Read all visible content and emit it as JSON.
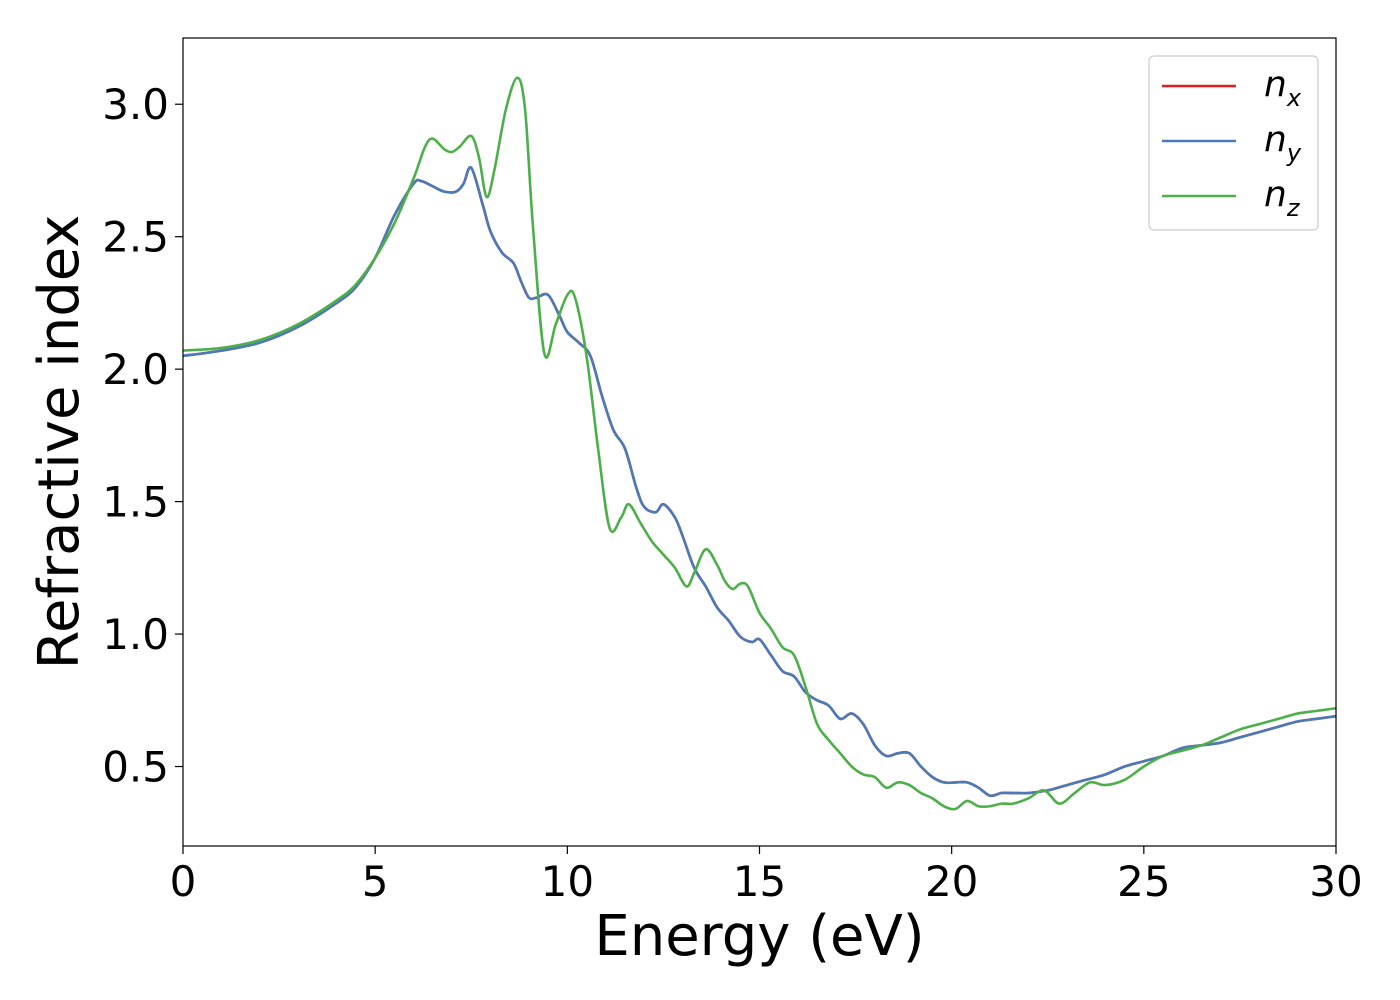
{
  "chart_data": {
    "type": "line",
    "title": "",
    "xlabel": "Energy (eV)",
    "ylabel": "Refractive index",
    "xlim": [
      0,
      30
    ],
    "ylim": [
      0.2,
      3.25
    ],
    "xticks": [
      0,
      5,
      10,
      15,
      20,
      25,
      30
    ],
    "yticks": [
      0.5,
      1.0,
      1.5,
      2.0,
      2.5,
      3.0
    ],
    "xtick_labels": [
      "0",
      "5",
      "10",
      "15",
      "20",
      "25",
      "30"
    ],
    "ytick_labels": [
      "0.5",
      "1.0",
      "1.5",
      "2.0",
      "2.5",
      "3.0"
    ],
    "grid": false,
    "legend_position": "top-right",
    "series": [
      {
        "name": "n",
        "sub": "x",
        "color": "#e41a1c",
        "x": [
          0,
          1,
          2,
          3,
          4,
          4.5,
          5,
          5.5,
          6,
          6.2,
          6.5,
          6.8,
          7.1,
          7.3,
          7.5,
          7.8,
          8.0,
          8.3,
          8.6,
          8.8,
          9.0,
          9.2,
          9.5,
          9.8,
          10.0,
          10.3,
          10.6,
          10.9,
          11.2,
          11.5,
          11.8,
          12.0,
          12.3,
          12.5,
          12.8,
          13.0,
          13.3,
          13.6,
          13.9,
          14.2,
          14.5,
          14.8,
          15.0,
          15.3,
          15.6,
          15.9,
          16.2,
          16.5,
          16.8,
          17.1,
          17.4,
          17.7,
          18.0,
          18.3,
          18.6,
          18.9,
          19.2,
          19.5,
          19.8,
          20.1,
          20.4,
          20.7,
          21.0,
          21.3,
          21.6,
          22.0,
          22.5,
          23.0,
          23.5,
          24.0,
          24.5,
          25.0,
          25.5,
          26.0,
          26.5,
          27.0,
          27.5,
          28.0,
          28.5,
          29.0,
          29.5,
          30.0
        ],
        "y": [
          2.05,
          2.07,
          2.1,
          2.16,
          2.25,
          2.31,
          2.42,
          2.58,
          2.7,
          2.71,
          2.69,
          2.67,
          2.67,
          2.7,
          2.76,
          2.62,
          2.52,
          2.44,
          2.4,
          2.33,
          2.27,
          2.27,
          2.28,
          2.2,
          2.14,
          2.1,
          2.05,
          1.9,
          1.77,
          1.7,
          1.55,
          1.48,
          1.46,
          1.49,
          1.44,
          1.37,
          1.25,
          1.18,
          1.1,
          1.05,
          0.99,
          0.97,
          0.98,
          0.92,
          0.86,
          0.84,
          0.78,
          0.75,
          0.73,
          0.68,
          0.7,
          0.66,
          0.58,
          0.54,
          0.55,
          0.55,
          0.5,
          0.46,
          0.44,
          0.44,
          0.44,
          0.42,
          0.39,
          0.4,
          0.4,
          0.4,
          0.41,
          0.43,
          0.45,
          0.47,
          0.5,
          0.52,
          0.54,
          0.57,
          0.58,
          0.59,
          0.61,
          0.63,
          0.65,
          0.67,
          0.68,
          0.69
        ]
      },
      {
        "name": "n",
        "sub": "y",
        "color": "#4a7ab8",
        "x": [
          0,
          1,
          2,
          3,
          4,
          4.5,
          5,
          5.5,
          6,
          6.2,
          6.5,
          6.8,
          7.1,
          7.3,
          7.5,
          7.8,
          8.0,
          8.3,
          8.6,
          8.8,
          9.0,
          9.2,
          9.5,
          9.8,
          10.0,
          10.3,
          10.6,
          10.9,
          11.2,
          11.5,
          11.8,
          12.0,
          12.3,
          12.5,
          12.8,
          13.0,
          13.3,
          13.6,
          13.9,
          14.2,
          14.5,
          14.8,
          15.0,
          15.3,
          15.6,
          15.9,
          16.2,
          16.5,
          16.8,
          17.1,
          17.4,
          17.7,
          18.0,
          18.3,
          18.6,
          18.9,
          19.2,
          19.5,
          19.8,
          20.1,
          20.4,
          20.7,
          21.0,
          21.3,
          21.6,
          22.0,
          22.5,
          23.0,
          23.5,
          24.0,
          24.5,
          25.0,
          25.5,
          26.0,
          26.5,
          27.0,
          27.5,
          28.0,
          28.5,
          29.0,
          29.5,
          30.0
        ],
        "y": [
          2.05,
          2.07,
          2.1,
          2.16,
          2.25,
          2.31,
          2.42,
          2.58,
          2.7,
          2.71,
          2.69,
          2.67,
          2.67,
          2.7,
          2.76,
          2.62,
          2.52,
          2.44,
          2.4,
          2.33,
          2.27,
          2.27,
          2.28,
          2.2,
          2.14,
          2.1,
          2.05,
          1.9,
          1.77,
          1.7,
          1.55,
          1.48,
          1.46,
          1.49,
          1.44,
          1.37,
          1.25,
          1.18,
          1.1,
          1.05,
          0.99,
          0.97,
          0.98,
          0.92,
          0.86,
          0.84,
          0.78,
          0.75,
          0.73,
          0.68,
          0.7,
          0.66,
          0.58,
          0.54,
          0.55,
          0.55,
          0.5,
          0.46,
          0.44,
          0.44,
          0.44,
          0.42,
          0.39,
          0.4,
          0.4,
          0.4,
          0.41,
          0.43,
          0.45,
          0.47,
          0.5,
          0.52,
          0.54,
          0.57,
          0.58,
          0.59,
          0.61,
          0.63,
          0.65,
          0.67,
          0.68,
          0.69
        ]
      },
      {
        "name": "n",
        "sub": "z",
        "color": "#4daf4a",
        "x": [
          0,
          1,
          2,
          3,
          4,
          4.5,
          5,
          5.5,
          6.0,
          6.3,
          6.5,
          6.8,
          7.0,
          7.2,
          7.5,
          7.7,
          7.9,
          8.1,
          8.4,
          8.7,
          8.9,
          9.1,
          9.4,
          9.7,
          10.0,
          10.2,
          10.5,
          10.8,
          11.1,
          11.4,
          11.6,
          11.9,
          12.2,
          12.5,
          12.8,
          13.1,
          13.3,
          13.6,
          13.9,
          14.1,
          14.3,
          14.5,
          14.7,
          15.0,
          15.3,
          15.6,
          15.9,
          16.2,
          16.5,
          16.8,
          17.1,
          17.4,
          17.7,
          18.0,
          18.3,
          18.6,
          18.9,
          19.2,
          19.5,
          19.8,
          20.1,
          20.4,
          20.7,
          21.0,
          21.3,
          21.6,
          22.0,
          22.4,
          22.8,
          23.2,
          23.6,
          24.0,
          24.5,
          25.0,
          25.5,
          26.0,
          26.5,
          27.0,
          27.5,
          28.0,
          28.5,
          29.0,
          29.5,
          30.0
        ],
        "y": [
          2.07,
          2.08,
          2.11,
          2.17,
          2.26,
          2.32,
          2.42,
          2.55,
          2.72,
          2.84,
          2.87,
          2.83,
          2.82,
          2.84,
          2.88,
          2.8,
          2.65,
          2.75,
          2.98,
          3.1,
          2.98,
          2.55,
          2.06,
          2.17,
          2.28,
          2.27,
          2.05,
          1.7,
          1.4,
          1.44,
          1.49,
          1.42,
          1.35,
          1.3,
          1.25,
          1.18,
          1.23,
          1.32,
          1.26,
          1.2,
          1.17,
          1.19,
          1.18,
          1.08,
          1.02,
          0.95,
          0.92,
          0.8,
          0.66,
          0.6,
          0.55,
          0.5,
          0.47,
          0.46,
          0.42,
          0.44,
          0.43,
          0.4,
          0.38,
          0.35,
          0.34,
          0.37,
          0.35,
          0.35,
          0.36,
          0.36,
          0.38,
          0.41,
          0.36,
          0.4,
          0.44,
          0.43,
          0.45,
          0.5,
          0.54,
          0.56,
          0.58,
          0.61,
          0.64,
          0.66,
          0.68,
          0.7,
          0.71,
          0.72
        ]
      }
    ]
  }
}
